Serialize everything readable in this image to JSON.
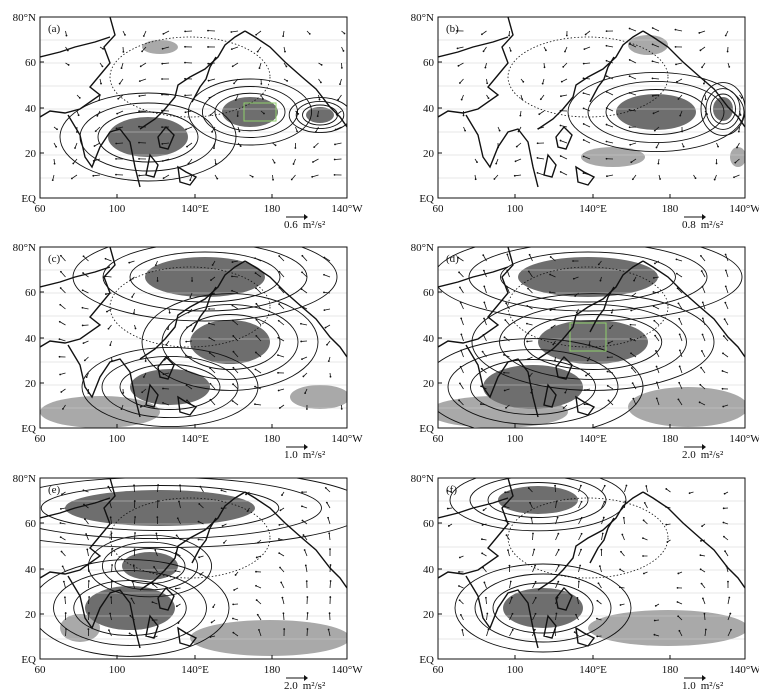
{
  "figure": {
    "lat_labels": [
      "80°N",
      "60",
      "40",
      "20",
      "EQ"
    ],
    "lon_labels": [
      "60",
      "100",
      "140°E",
      "180",
      "140°W"
    ],
    "colors": {
      "shade_dark": "#6e6e6e",
      "shade_light": "#a9a9a9",
      "line": "#111111",
      "highlight": "#8fd06a",
      "background": "#ffffff"
    }
  },
  "panels": [
    {
      "label": "(a)",
      "ref_value": "0.6",
      "ref_unit": "m²/s²"
    },
    {
      "label": "(b)",
      "ref_value": "0.8",
      "ref_unit": "m²/s²"
    },
    {
      "label": "(c)",
      "ref_value": "1.0",
      "ref_unit": "m²/s²"
    },
    {
      "label": "(d)",
      "ref_value": "2.0",
      "ref_unit": "m²/s²"
    },
    {
      "label": "(e)",
      "ref_value": "2.0",
      "ref_unit": "m²/s²"
    },
    {
      "label": "(f)",
      "ref_value": "1.0",
      "ref_unit": "m²/s²"
    }
  ]
}
